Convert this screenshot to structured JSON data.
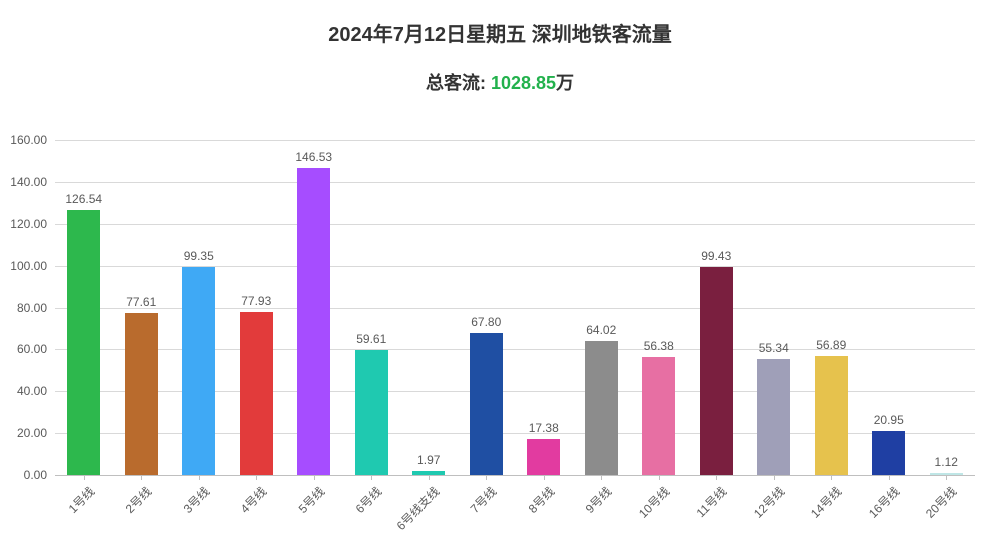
{
  "title": "2024年7月12日星期五  深圳地铁客流量",
  "subtitle": {
    "label": "总客流: ",
    "value": "1028.85",
    "unit": "万",
    "value_color": "#22b14c"
  },
  "chart": {
    "type": "bar",
    "ylim": [
      0,
      160
    ],
    "ytick_step": 20,
    "y_decimals": 2,
    "background_color": "#ffffff",
    "grid_color": "#d9d9d9",
    "axis_color": "#bfbfbf",
    "label_color": "#595959",
    "bar_width_ratio": 0.58,
    "title_fontsize": 20,
    "subtitle_fontsize": 18,
    "tick_fontsize": 12,
    "value_label_fontsize": 12,
    "categories": [
      "1号线",
      "2号线",
      "3号线",
      "4号线",
      "5号线",
      "6号线",
      "6号线支线",
      "7号线",
      "8号线",
      "9号线",
      "10号线",
      "11号线",
      "12号线",
      "14号线",
      "16号线",
      "20号线"
    ],
    "values": [
      126.54,
      77.61,
      99.35,
      77.93,
      146.53,
      59.61,
      1.97,
      67.8,
      17.38,
      64.02,
      56.38,
      99.43,
      55.34,
      56.89,
      20.95,
      1.12
    ],
    "bar_colors": [
      "#2db84d",
      "#b96b2d",
      "#3fa9f5",
      "#e23b3b",
      "#a64dff",
      "#1fc9b0",
      "#1fc9b0",
      "#1f4fa3",
      "#e23ba0",
      "#8c8c8c",
      "#e76fa3",
      "#7a1f3f",
      "#9f9fb8",
      "#e6c24d",
      "#1f3fa3",
      "#bfe6e6"
    ]
  }
}
